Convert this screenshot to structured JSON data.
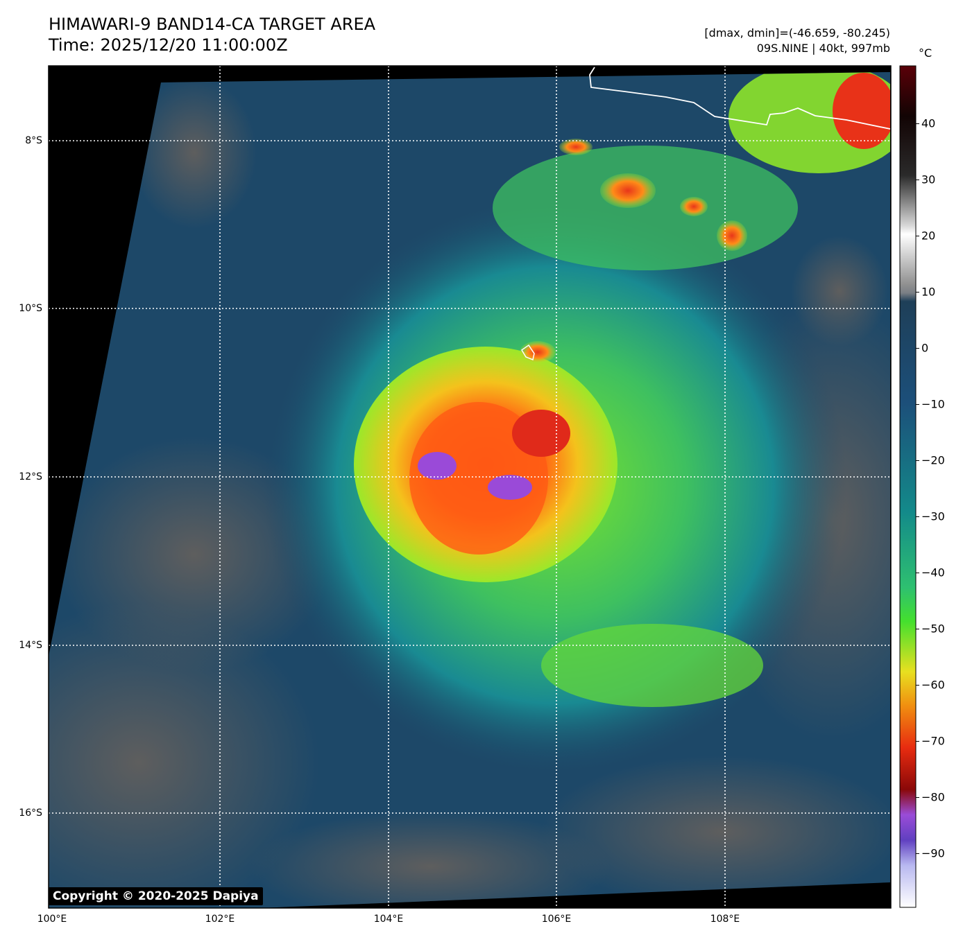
{
  "title": {
    "line1": "HIMAWARI-9 BAND14-CA TARGET AREA",
    "line2": "Time: 2025/12/20 11:00:00Z"
  },
  "stats": {
    "line1": "[dmax, dmin]=(-46.659, -80.245)",
    "line2": "09S.NINE | 40kt, 997mb"
  },
  "colorbar": {
    "unit": "°C",
    "ticks": [
      "40",
      "30",
      "20",
      "10",
      "0",
      "−10",
      "−20",
      "−30",
      "−40",
      "−50",
      "−60",
      "−70",
      "−80",
      "−90"
    ]
  },
  "lat_labels": [
    "8°S",
    "10°S",
    "12°S",
    "14°S",
    "16°S"
  ],
  "lon_labels": [
    "100°E",
    "102°E",
    "104°E",
    "106°E",
    "108°E"
  ],
  "copyright": "Copyright © 2020-2025 Dapiya",
  "colors": {
    "background": "#000000",
    "clear_sky": "#6b6b6b",
    "warm_cloud": "#1e4a6b",
    "mid_cloud": "#2ea88a",
    "cold_cloud": "#6ee82a",
    "very_cold": "#f0c418",
    "coldest": "#e8321a",
    "overshoot": "#8a4ad8",
    "coastline": "#ffffff",
    "grid": "#ffffff"
  }
}
